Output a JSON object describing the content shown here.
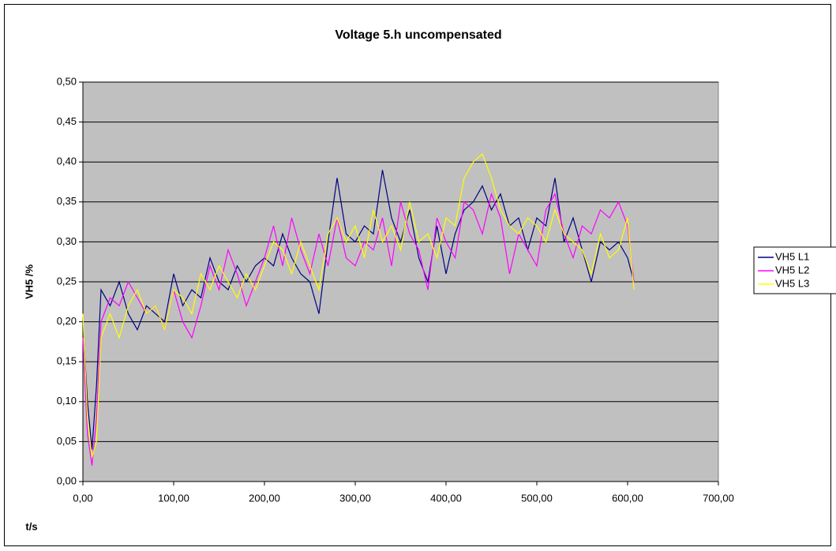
{
  "chart_data": {
    "type": "line",
    "title": "Voltage 5.h uncompensated",
    "xlabel": "t/s",
    "ylabel": "VH5 /%",
    "x": [
      0,
      5,
      10,
      15,
      20,
      30,
      40,
      50,
      60,
      70,
      80,
      90,
      100,
      110,
      120,
      130,
      140,
      150,
      160,
      170,
      180,
      190,
      200,
      210,
      220,
      230,
      240,
      250,
      260,
      270,
      280,
      290,
      300,
      310,
      320,
      330,
      340,
      350,
      360,
      370,
      380,
      390,
      400,
      410,
      420,
      430,
      440,
      450,
      460,
      470,
      480,
      490,
      500,
      510,
      520,
      530,
      540,
      550,
      560,
      570,
      580,
      590,
      600,
      607
    ],
    "series": [
      {
        "name": "VH5 L1",
        "color": "#000080",
        "values": [
          0.2,
          0.1,
          0.04,
          0.12,
          0.24,
          0.22,
          0.25,
          0.21,
          0.19,
          0.22,
          0.21,
          0.2,
          0.26,
          0.22,
          0.24,
          0.23,
          0.28,
          0.25,
          0.24,
          0.27,
          0.25,
          0.27,
          0.28,
          0.27,
          0.31,
          0.28,
          0.26,
          0.25,
          0.21,
          0.3,
          0.38,
          0.31,
          0.3,
          0.32,
          0.31,
          0.39,
          0.33,
          0.3,
          0.34,
          0.28,
          0.25,
          0.32,
          0.26,
          0.31,
          0.34,
          0.35,
          0.37,
          0.34,
          0.36,
          0.32,
          0.33,
          0.29,
          0.33,
          0.32,
          0.38,
          0.3,
          0.33,
          0.29,
          0.25,
          0.3,
          0.29,
          0.3,
          0.28,
          0.25
        ]
      },
      {
        "name": "VH5 L2",
        "color": "#ff00ff",
        "values": [
          0.18,
          0.06,
          0.02,
          0.08,
          0.2,
          0.23,
          0.22,
          0.25,
          0.23,
          0.21,
          0.22,
          0.19,
          0.24,
          0.2,
          0.18,
          0.22,
          0.27,
          0.24,
          0.29,
          0.26,
          0.22,
          0.25,
          0.28,
          0.32,
          0.27,
          0.33,
          0.29,
          0.26,
          0.31,
          0.27,
          0.33,
          0.28,
          0.27,
          0.3,
          0.29,
          0.33,
          0.27,
          0.35,
          0.31,
          0.29,
          0.24,
          0.33,
          0.3,
          0.28,
          0.35,
          0.34,
          0.31,
          0.36,
          0.33,
          0.26,
          0.31,
          0.29,
          0.27,
          0.34,
          0.36,
          0.31,
          0.28,
          0.32,
          0.31,
          0.34,
          0.33,
          0.35,
          0.32,
          0.25
        ]
      },
      {
        "name": "VH5 L3",
        "color": "#ffff00",
        "values": [
          0.21,
          0.08,
          0.03,
          0.05,
          0.18,
          0.21,
          0.18,
          0.22,
          0.24,
          0.21,
          0.22,
          0.19,
          0.24,
          0.23,
          0.21,
          0.26,
          0.24,
          0.27,
          0.25,
          0.23,
          0.26,
          0.24,
          0.27,
          0.3,
          0.29,
          0.26,
          0.3,
          0.27,
          0.24,
          0.31,
          0.33,
          0.3,
          0.32,
          0.28,
          0.34,
          0.3,
          0.32,
          0.29,
          0.35,
          0.3,
          0.31,
          0.28,
          0.33,
          0.32,
          0.38,
          0.4,
          0.41,
          0.38,
          0.34,
          0.32,
          0.31,
          0.33,
          0.32,
          0.3,
          0.34,
          0.31,
          0.3,
          0.29,
          0.26,
          0.31,
          0.28,
          0.29,
          0.33,
          0.24
        ]
      }
    ],
    "xlim": [
      0,
      700
    ],
    "xticks": [
      {
        "value": 0,
        "label": "0,00"
      },
      {
        "value": 100,
        "label": "100,00"
      },
      {
        "value": 200,
        "label": "200,00"
      },
      {
        "value": 300,
        "label": "300,00"
      },
      {
        "value": 400,
        "label": "400,00"
      },
      {
        "value": 500,
        "label": "500,00"
      },
      {
        "value": 600,
        "label": "600,00"
      },
      {
        "value": 700,
        "label": "700,00"
      }
    ],
    "ylim": [
      0,
      0.5
    ],
    "yticks": [
      {
        "value": 0,
        "label": "0,00"
      },
      {
        "value": 0.05,
        "label": "0,05"
      },
      {
        "value": 0.1,
        "label": "0,10"
      },
      {
        "value": 0.15,
        "label": "0,15"
      },
      {
        "value": 0.2,
        "label": "0,20"
      },
      {
        "value": 0.25,
        "label": "0,25"
      },
      {
        "value": 0.3,
        "label": "0,30"
      },
      {
        "value": 0.35,
        "label": "0,35"
      },
      {
        "value": 0.4,
        "label": "0,40"
      },
      {
        "value": 0.45,
        "label": "0,45"
      },
      {
        "value": 0.5,
        "label": "0,50"
      }
    ],
    "grid": true,
    "legend": "right"
  }
}
